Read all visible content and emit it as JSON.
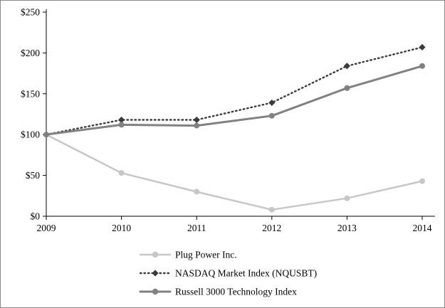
{
  "figure": {
    "title": "",
    "background": "#ffffff",
    "border_color": "#8a8a8a",
    "axis_color": "#000000"
  },
  "chart_data": {
    "type": "line",
    "x": [
      "2009",
      "2010",
      "2011",
      "2012",
      "2013",
      "2014"
    ],
    "series": [
      {
        "name": "Plug Power Inc.",
        "values": [
          100,
          53,
          30,
          8,
          22,
          43
        ],
        "color": "#c7c7c7",
        "line_style": "solid",
        "line_width": 2.5,
        "marker": "circle"
      },
      {
        "name": "NASDAQ Market Index (NQUSBT)",
        "values": [
          100,
          118,
          118,
          139,
          184,
          207
        ],
        "color": "#3b3b3b",
        "line_style": "dotted",
        "line_width": 2.4,
        "marker": "diamond"
      },
      {
        "name": "Russell 3000 Technology Index",
        "values": [
          100,
          112,
          111,
          123,
          157,
          184
        ],
        "color": "#818181",
        "line_style": "solid",
        "line_width": 3,
        "marker": "circle"
      }
    ],
    "xlabel": "",
    "ylabel": "",
    "ylim": [
      0,
      250
    ],
    "yticks": [
      0,
      50,
      100,
      150,
      200,
      250
    ],
    "ytick_labels": [
      "$0",
      "$50",
      "$100",
      "$150",
      "$200",
      "$250"
    ],
    "grid": false,
    "legend_position": "bottom"
  }
}
